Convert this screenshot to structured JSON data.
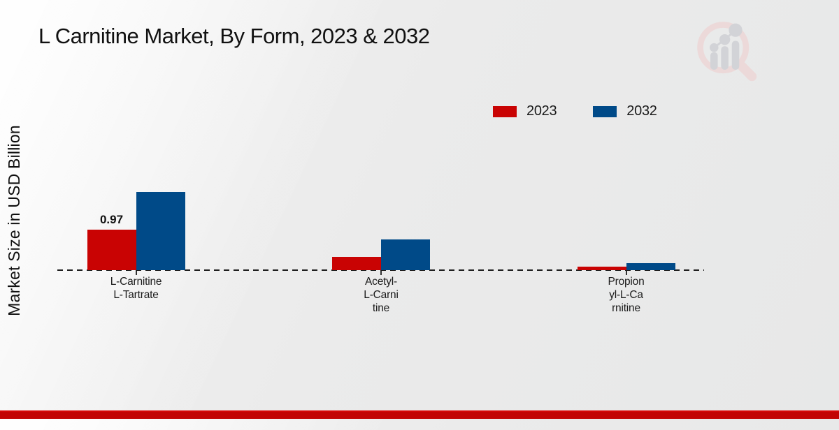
{
  "title": "L Carnitine Market, By Form, 2023 & 2032",
  "ylabel": "Market Size in USD Billion",
  "watermark_icon": "magnifier-bar-chart-logo",
  "colors": {
    "bar_2023": "#c90303",
    "bar_2032": "#004a88",
    "bottom_stripe": "#c20404",
    "background": "#ebebeb",
    "baseline": "#1e1e1e"
  },
  "chart_data": {
    "type": "bar",
    "title": "L Carnitine Market, By Form, 2023 & 2032",
    "xlabel": "",
    "ylabel": "Market Size in USD Billion",
    "categories": [
      "L-Carnitine L-Tartrate",
      "Acetyl-L-Carnitine",
      "Propionyl-L-Carnitine"
    ],
    "category_label_lines": [
      [
        "L-Carnitine",
        "L-Tartrate"
      ],
      [
        "Acetyl-",
        "L-Carni",
        "tine"
      ],
      [
        "Propion",
        "yl-L-Ca",
        "rnitine"
      ]
    ],
    "series": [
      {
        "name": "2023",
        "color": "#c90303",
        "values": [
          0.97,
          0.32,
          0.08
        ]
      },
      {
        "name": "2032",
        "color": "#004a88",
        "values": [
          1.87,
          0.74,
          0.16
        ]
      }
    ],
    "data_labels": [
      {
        "series": "2023",
        "category": "L-Carnitine L-Tartrate",
        "text": "0.97"
      }
    ],
    "ylim": [
      0,
      2.0
    ],
    "grid": false,
    "baseline_style": "dashed",
    "legend_position": "top-right",
    "legend_entries": [
      "2023",
      "2032"
    ]
  }
}
